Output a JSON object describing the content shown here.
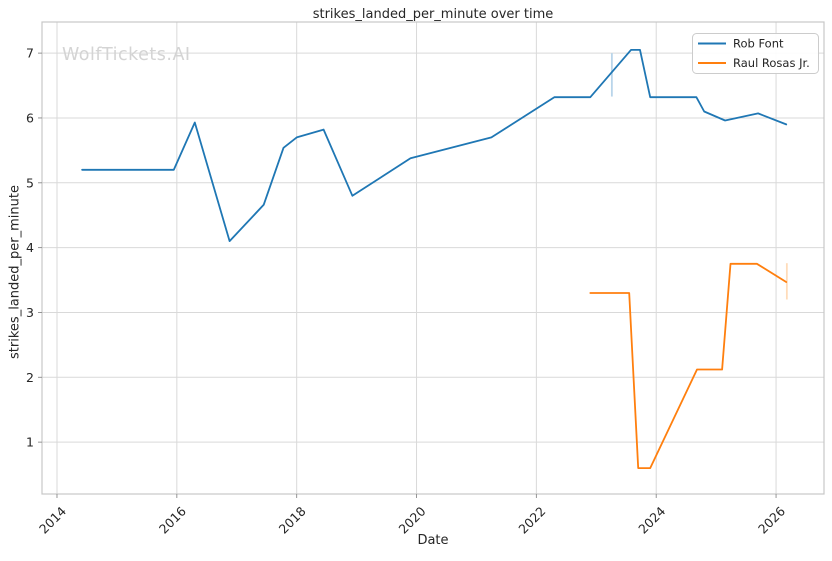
{
  "watermark": "WolfTickets.AI",
  "colors": {
    "background": "#ffffff",
    "grid": "#d9d9d9",
    "spine": "#c7c7c7",
    "tick": "#8a8a8a",
    "text": "#262626",
    "legend_border": "#cccccc",
    "legend_fill": "#ffffff"
  },
  "chart_data": {
    "type": "line",
    "title": "strikes_landed_per_minute over time",
    "xlabel": "Date",
    "ylabel": "strikes_landed_per_minute",
    "xlim": [
      2013.75,
      2026.8
    ],
    "ylim": [
      0.2,
      7.48
    ],
    "x_ticks": [
      2014,
      2016,
      2018,
      2020,
      2022,
      2024,
      2026
    ],
    "y_ticks": [
      1,
      2,
      3,
      4,
      5,
      6,
      7
    ],
    "grid": true,
    "legend_position": "top-right",
    "series": [
      {
        "name": "Rob Font",
        "color": "#1f77b4",
        "x": [
          2014.42,
          2015.95,
          2016.3,
          2016.88,
          2017.45,
          2017.78,
          2018.0,
          2018.45,
          2018.93,
          2019.9,
          2021.25,
          2022.3,
          2022.9,
          2023.58,
          2023.73,
          2023.9,
          2024.67,
          2024.8,
          2025.15,
          2025.7,
          2026.17
        ],
        "y": [
          5.2,
          5.2,
          5.93,
          4.1,
          4.66,
          5.54,
          5.7,
          5.82,
          4.8,
          5.38,
          5.7,
          6.32,
          6.32,
          7.05,
          7.05,
          6.32,
          6.32,
          6.1,
          5.96,
          6.07,
          5.9
        ],
        "error_bar": {
          "x": 2023.26,
          "y_low": 6.33,
          "y_high": 7.0,
          "color": "#b9d5ea"
        }
      },
      {
        "name": "Raul Rosas Jr.",
        "color": "#ff7f0e",
        "x": [
          2022.9,
          2023.55,
          2023.7,
          2023.9,
          2024.68,
          2025.1,
          2025.24,
          2025.68,
          2026.17
        ],
        "y": [
          3.3,
          3.3,
          0.6,
          0.6,
          2.12,
          2.12,
          3.75,
          3.75,
          3.47
        ],
        "error_bar": {
          "x": 2026.18,
          "y_low": 3.2,
          "y_high": 3.76,
          "color": "#ffdcba"
        }
      }
    ]
  }
}
